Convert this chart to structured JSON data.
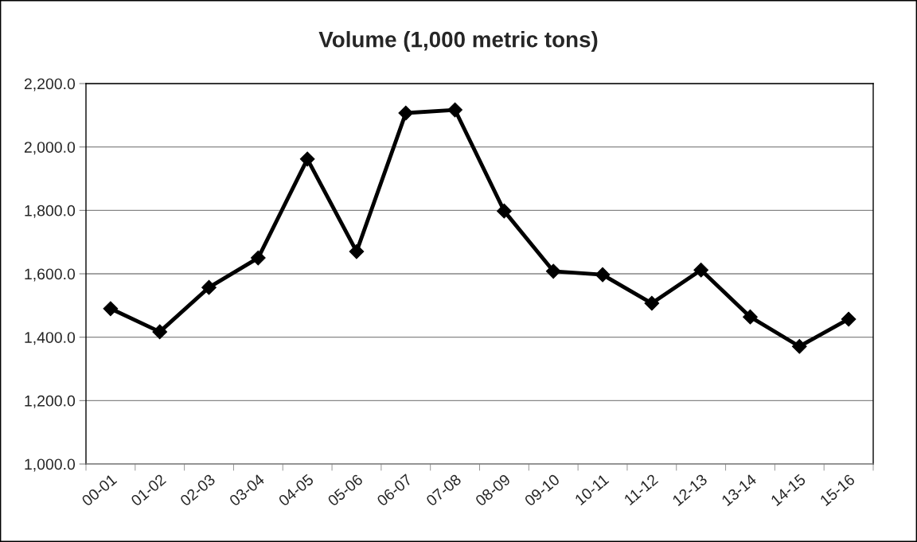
{
  "chart_data": {
    "type": "line",
    "title": "Volume (1,000 metric tons)",
    "categories": [
      "00-01",
      "01-02",
      "02-03",
      "03-04",
      "04-05",
      "05-06",
      "06-07",
      "07-08",
      "08-09",
      "09-10",
      "10-11",
      "11-12",
      "12-13",
      "13-14",
      "14-15",
      "15-16"
    ],
    "series": [
      {
        "color": "#000000",
        "values": [
          1490,
          1417,
          1557,
          1650,
          1962,
          1670,
          2107,
          2117,
          1798,
          1608,
          1597,
          1507,
          1612,
          1464,
          1371,
          1457
        ]
      }
    ],
    "ylim": [
      1000,
      2200
    ],
    "yticks": [
      {
        "value": 1000,
        "label": "1,000.0"
      },
      {
        "value": 1200,
        "label": "1,200.0"
      },
      {
        "value": 1400,
        "label": "1,400.0"
      },
      {
        "value": 1600,
        "label": "1,600.0"
      },
      {
        "value": 1800,
        "label": "1,800.0"
      },
      {
        "value": 2000,
        "label": "2,000.0"
      },
      {
        "value": 2200,
        "label": "2,200.0"
      }
    ],
    "grid": "y",
    "marker": "diamond",
    "line_style": "solid",
    "legend": false
  }
}
